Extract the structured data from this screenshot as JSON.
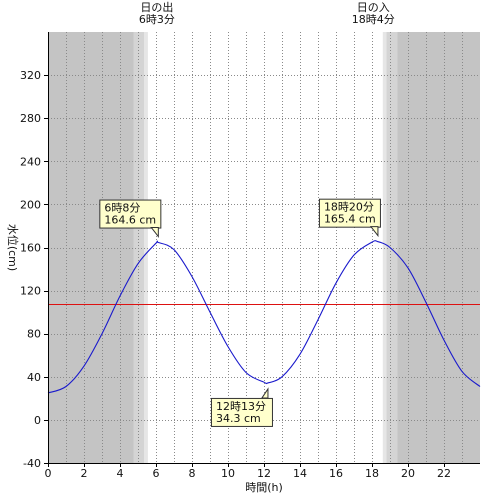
{
  "chart_data": {
    "type": "line",
    "xlabel": "時間(h)",
    "ylabel": "水位(cm)",
    "xlim": [
      0,
      24
    ],
    "ylim": [
      -40,
      360
    ],
    "x_ticks": [
      0,
      2,
      4,
      6,
      8,
      10,
      12,
      14,
      16,
      18,
      20,
      22
    ],
    "y_ticks": [
      -40,
      0,
      40,
      80,
      120,
      160,
      200,
      240,
      280,
      320
    ],
    "grid": "vertical dotted every hour, horizontal dotted at y ticks",
    "colors": {
      "night": "#c4c4c4",
      "twilight_dark": "#d4d4d4",
      "twilight_light": "#e6e6e6",
      "day": "#ffffff",
      "tide_line": "#1a1acc",
      "reference_line": "#dd1111",
      "callout_bg": "#ffffcc"
    },
    "sunrise": {
      "label": "日の出",
      "time": "6時3分",
      "hour": 6.05
    },
    "sunset": {
      "label": "日の入",
      "time": "18時4分",
      "hour": 18.07
    },
    "twilight_shading": [
      {
        "from": 0,
        "to": 4.75,
        "shade": "night"
      },
      {
        "from": 4.75,
        "to": 5.35,
        "shade": "twilight_dark"
      },
      {
        "from": 5.35,
        "to": 5.55,
        "shade": "twilight_light"
      },
      {
        "from": 18.6,
        "to": 18.8,
        "shade": "twilight_light"
      },
      {
        "from": 18.8,
        "to": 19.4,
        "shade": "twilight_dark"
      },
      {
        "from": 19.4,
        "to": 24,
        "shade": "night"
      }
    ],
    "reference_level": 108,
    "series": [
      {
        "points": [
          [
            0,
            25
          ],
          [
            1,
            31
          ],
          [
            2,
            50
          ],
          [
            3,
            80
          ],
          [
            4,
            115
          ],
          [
            5,
            145
          ],
          [
            6,
            164
          ],
          [
            6.13,
            164.6
          ],
          [
            7,
            158
          ],
          [
            8,
            133
          ],
          [
            9,
            100
          ],
          [
            10,
            68
          ],
          [
            11,
            44
          ],
          [
            12,
            35
          ],
          [
            12.22,
            34.3
          ],
          [
            13,
            40
          ],
          [
            14,
            61
          ],
          [
            15,
            93
          ],
          [
            16,
            127
          ],
          [
            17,
            153
          ],
          [
            18,
            165
          ],
          [
            18.33,
            165.4
          ],
          [
            19,
            160
          ],
          [
            20,
            141
          ],
          [
            21,
            109
          ],
          [
            22,
            74
          ],
          [
            23,
            45
          ],
          [
            24,
            31
          ]
        ]
      }
    ],
    "annotations": [
      {
        "line1": "6時8分",
        "line2": "164.6 cm",
        "x": 6.13,
        "y": 164.6,
        "pointer": "below"
      },
      {
        "line1": "12時13分",
        "line2": "34.3 cm",
        "x": 12.22,
        "y": 34.3,
        "pointer": "above"
      },
      {
        "line1": "18時20分",
        "line2": "165.4 cm",
        "x": 18.33,
        "y": 165.4,
        "pointer": "below"
      }
    ]
  }
}
